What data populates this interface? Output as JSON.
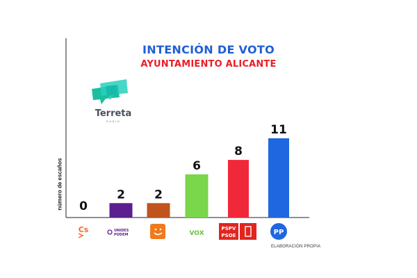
{
  "title": "INTENCIÓN DE VOTO",
  "subtitle": "AYUNTAMIENTO ALICANTE",
  "logo": {
    "name": "Terreta",
    "tagline": "RADIO"
  },
  "credit": "ELABORACIÓN PROPIA",
  "chart_data": {
    "type": "bar",
    "title": "INTENCIÓN DE VOTO",
    "subtitle": "AYUNTAMIENTO ALICANTE",
    "xlabel": "",
    "ylabel": "número de escaños",
    "ylim": [
      0,
      11
    ],
    "grid": false,
    "legend": "none",
    "categories": [
      "Cs",
      "UNIDES PODEM",
      "Compromís",
      "VOX",
      "PSPV PSOE",
      "PP"
    ],
    "values": [
      0,
      2,
      2,
      6,
      8,
      11
    ],
    "colors": [
      "#f56b1f",
      "#5b1f8f",
      "#c0541c",
      "#7ad64a",
      "#f0283a",
      "#1f67e0"
    ],
    "data_labels": [
      "0",
      "2",
      "2",
      "6",
      "8",
      "11"
    ]
  }
}
